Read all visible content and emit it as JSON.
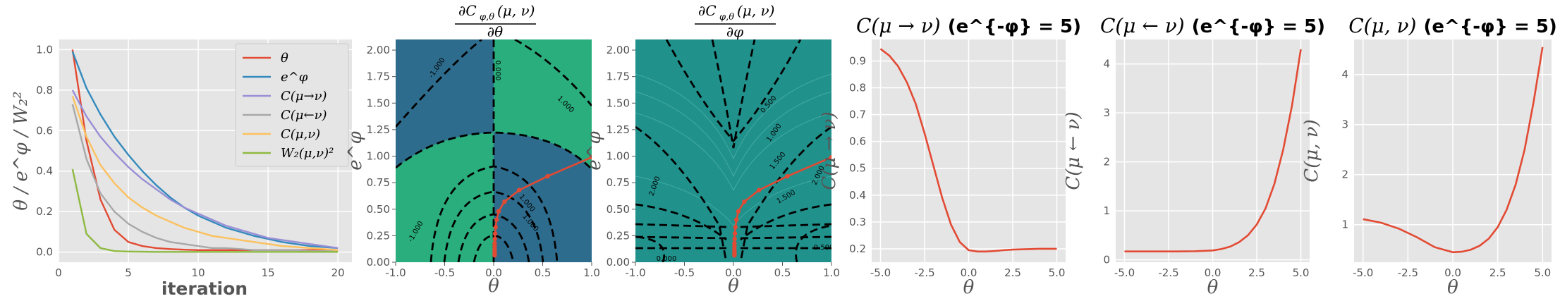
{
  "colors": {
    "panel_bg": "#e5e5e5",
    "theta": "#e24a33",
    "ephi": "#348abd",
    "c_fwd": "#988ed5",
    "c_bwd": "#a8a8a8",
    "c_sym": "#fbc15e",
    "w2": "#8eba42",
    "contour_dark": "#2e6c8e",
    "contour_green": "#2aae7e",
    "contour_teal": "#21918c"
  },
  "chart_data": [
    {
      "type": "line",
      "title": "",
      "xlabel": "iteration",
      "ylabel": "θ / e^φ / W₂²",
      "xlim": [
        0,
        21
      ],
      "ylim": [
        -0.05,
        1.05
      ],
      "xticks": [
        "0",
        "5",
        "10",
        "15",
        "20"
      ],
      "yticks": [
        "0.0",
        "0.2",
        "0.4",
        "0.6",
        "0.8",
        "1.0"
      ],
      "x": [
        1,
        2,
        3,
        4,
        5,
        6,
        7,
        8,
        9,
        10,
        11,
        12,
        13,
        14,
        15,
        16,
        17,
        18,
        19,
        20
      ],
      "series": [
        {
          "name": "θ",
          "values": [
            1.0,
            0.55,
            0.26,
            0.11,
            0.05,
            0.03,
            0.02,
            0.015,
            0.012,
            0.01,
            0.01,
            0.01,
            0.01,
            0.01,
            0.01,
            0.01,
            0.01,
            0.01,
            0.01,
            0.01
          ]
        },
        {
          "name": "e^φ",
          "values": [
            0.99,
            0.81,
            0.68,
            0.57,
            0.48,
            0.4,
            0.33,
            0.27,
            0.22,
            0.18,
            0.15,
            0.12,
            0.1,
            0.08,
            0.065,
            0.05,
            0.04,
            0.03,
            0.025,
            0.02
          ]
        },
        {
          "name": "C(μ→ν)",
          "values": [
            0.8,
            0.67,
            0.57,
            0.49,
            0.42,
            0.36,
            0.31,
            0.26,
            0.22,
            0.19,
            0.16,
            0.13,
            0.11,
            0.09,
            0.07,
            0.06,
            0.05,
            0.04,
            0.03,
            0.02
          ]
        },
        {
          "name": "C(μ←ν)",
          "values": [
            0.73,
            0.46,
            0.29,
            0.2,
            0.14,
            0.1,
            0.07,
            0.05,
            0.04,
            0.03,
            0.02,
            0.02,
            0.015,
            0.01,
            0.01,
            0.01,
            0.01,
            0.005,
            0.005,
            0.005
          ]
        },
        {
          "name": "C(μ,ν)",
          "values": [
            0.77,
            0.57,
            0.43,
            0.34,
            0.27,
            0.22,
            0.18,
            0.15,
            0.12,
            0.1,
            0.08,
            0.07,
            0.06,
            0.05,
            0.04,
            0.03,
            0.025,
            0.02,
            0.015,
            0.01
          ]
        },
        {
          "name": "W₂(μ,ν)²",
          "values": [
            0.41,
            0.09,
            0.02,
            0.005,
            0.003,
            0.002,
            0.001,
            0.001,
            0.001,
            0.001,
            0.001,
            0.001,
            0.001,
            0.001,
            0.001,
            0.001,
            0.001,
            0.001,
            0.001,
            0.001
          ]
        }
      ],
      "legend_placement": "top-right"
    },
    {
      "type": "contour",
      "title_numerator": "∂C",
      "title_sub": "φ,θ",
      "title_args": "(μ, ν)",
      "title_denominator": "∂θ",
      "xlabel": "θ",
      "ylabel": "e^φ",
      "xlim": [
        -1.0,
        1.0
      ],
      "ylim": [
        0.0,
        2.1
      ],
      "xticks": [
        "-1.0",
        "-0.5",
        "0.0",
        "0.5",
        "1.0"
      ],
      "yticks": [
        "0.00",
        "0.25",
        "0.50",
        "0.75",
        "1.00",
        "1.25",
        "1.50",
        "1.75",
        "2.00"
      ],
      "contour_labels": [
        "-1.000",
        "0.000",
        "1.000",
        "1.000",
        "1.000",
        "-1.000"
      ],
      "trajectory": {
        "theta": [
          1.0,
          0.55,
          0.26,
          0.11,
          0.05,
          0.03,
          0.02,
          0.015,
          0.012,
          0.01,
          0.01,
          0.01,
          0.01,
          0.01,
          0.01
        ],
        "ephi": [
          0.99,
          0.81,
          0.68,
          0.57,
          0.48,
          0.4,
          0.33,
          0.27,
          0.22,
          0.18,
          0.15,
          0.12,
          0.1,
          0.08,
          0.065
        ]
      }
    },
    {
      "type": "contour",
      "title_numerator": "∂C",
      "title_sub": "φ,θ",
      "title_args": "(μ, ν)",
      "title_denominator": "∂φ",
      "xlabel": "θ",
      "ylabel": "e^φ",
      "xlim": [
        -1.0,
        1.0
      ],
      "ylim": [
        0.0,
        2.1
      ],
      "xticks": [
        "-1.0",
        "-0.5",
        "0.0",
        "0.5",
        "1.0"
      ],
      "yticks": [
        "0.00",
        "0.25",
        "0.50",
        "0.75",
        "1.00",
        "1.25",
        "1.50",
        "1.75",
        "2.00"
      ],
      "contour_labels": [
        "0.500",
        "1.000",
        "1.500",
        "2.000",
        "2.000",
        "1.500",
        "0.500",
        "0.000"
      ],
      "trajectory": {
        "theta": [
          1.0,
          0.55,
          0.26,
          0.11,
          0.05,
          0.03,
          0.02,
          0.015,
          0.012,
          0.01,
          0.01,
          0.01,
          0.01,
          0.01,
          0.01
        ],
        "ephi": [
          0.99,
          0.81,
          0.68,
          0.57,
          0.48,
          0.4,
          0.33,
          0.27,
          0.22,
          0.18,
          0.15,
          0.12,
          0.1,
          0.08,
          0.065
        ]
      }
    },
    {
      "type": "line",
      "title_main": "C(μ → ν)",
      "title_param": "(e^{-φ} = 5)",
      "xlabel": "θ",
      "ylabel": "C(μ → ν)",
      "xlim": [
        -5.5,
        5.5
      ],
      "ylim": [
        0.15,
        0.98
      ],
      "xticks": [
        "-5.0",
        "-2.5",
        "0.0",
        "2.5",
        "5.0"
      ],
      "yticks": [
        "0.2",
        "0.3",
        "0.4",
        "0.5",
        "0.6",
        "0.7",
        "0.8",
        "0.9"
      ],
      "x": [
        -5.0,
        -4.5,
        -4.0,
        -3.5,
        -3.0,
        -2.5,
        -2.0,
        -1.5,
        -1.0,
        -0.5,
        0.0,
        0.5,
        1.0,
        1.5,
        2.0,
        2.5,
        3.0,
        3.5,
        4.0,
        4.5,
        5.0
      ],
      "values": [
        0.945,
        0.92,
        0.88,
        0.82,
        0.74,
        0.63,
        0.51,
        0.39,
        0.29,
        0.225,
        0.195,
        0.19,
        0.19,
        0.192,
        0.195,
        0.197,
        0.198,
        0.199,
        0.2,
        0.2,
        0.2
      ]
    },
    {
      "type": "line",
      "title_main": "C(μ ← ν)",
      "title_param": "(e^{-φ} = 5)",
      "xlabel": "θ",
      "ylabel": "C(μ ← ν)",
      "xlim": [
        -5.5,
        5.5
      ],
      "ylim": [
        -0.05,
        4.5
      ],
      "xticks": [
        "-5.0",
        "-2.5",
        "0.0",
        "2.5",
        "5.0"
      ],
      "yticks": [
        "0",
        "1",
        "2",
        "3",
        "4"
      ],
      "x": [
        -5.0,
        -4.0,
        -3.0,
        -2.0,
        -1.0,
        0.0,
        0.5,
        1.0,
        1.5,
        2.0,
        2.5,
        3.0,
        3.5,
        4.0,
        4.5,
        5.0
      ],
      "values": [
        0.17,
        0.17,
        0.17,
        0.17,
        0.175,
        0.19,
        0.22,
        0.27,
        0.36,
        0.5,
        0.72,
        1.05,
        1.55,
        2.25,
        3.15,
        4.3
      ]
    },
    {
      "type": "line",
      "title_main": "C(μ, ν)",
      "title_param": "(e^{-φ} = 5)",
      "xlabel": "θ",
      "ylabel": "C(μ, ν)",
      "xlim": [
        -5.5,
        5.5
      ],
      "ylim": [
        0.25,
        4.7
      ],
      "xticks": [
        "-5.0",
        "-2.5",
        "0.0",
        "2.5",
        "5.0"
      ],
      "yticks": [
        "1",
        "2",
        "3",
        "4"
      ],
      "x": [
        -5.0,
        -4.0,
        -3.0,
        -2.0,
        -1.0,
        0.0,
        0.5,
        1.0,
        1.5,
        2.0,
        2.5,
        3.0,
        3.5,
        4.0,
        4.5,
        5.0
      ],
      "values": [
        1.11,
        1.04,
        0.92,
        0.75,
        0.55,
        0.45,
        0.46,
        0.5,
        0.58,
        0.72,
        0.95,
        1.3,
        1.8,
        2.5,
        3.45,
        4.55
      ]
    }
  ]
}
